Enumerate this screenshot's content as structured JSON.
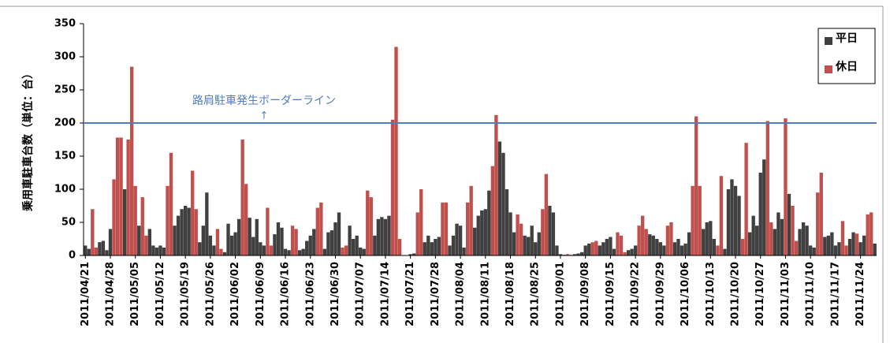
{
  "chart_data": {
    "type": "bar",
    "y_label": "乗用車駐車台数（単位：台）",
    "threshold": {
      "value": 200,
      "label": "路肩駐車発生ボーダーライン",
      "arrow": "↑",
      "color": "#4f7ec0"
    },
    "ylim": [
      0,
      350
    ],
    "yticks": [
      0,
      50,
      100,
      150,
      200,
      250,
      300,
      350
    ],
    "legend": "upper right",
    "categories": [
      "2011/04/21",
      null,
      null,
      null,
      null,
      null,
      null,
      "2011/04/28",
      null,
      null,
      null,
      null,
      null,
      null,
      "2011/05/05",
      null,
      null,
      null,
      null,
      null,
      null,
      "2011/05/12",
      null,
      null,
      null,
      null,
      null,
      null,
      "2011/05/19",
      null,
      null,
      null,
      null,
      null,
      null,
      "2011/05/26",
      null,
      null,
      null,
      null,
      null,
      null,
      "2011/06/02",
      null,
      null,
      null,
      null,
      null,
      null,
      "2011/06/09",
      null,
      null,
      null,
      null,
      null,
      null,
      "2011/06/16",
      null,
      null,
      null,
      null,
      null,
      null,
      "2011/06/23",
      null,
      null,
      null,
      null,
      null,
      null,
      "2011/06/30",
      null,
      null,
      null,
      null,
      null,
      null,
      "2011/07/07",
      null,
      null,
      null,
      null,
      null,
      null,
      "2011/07/14",
      null,
      null,
      null,
      null,
      null,
      null,
      "2011/07/21",
      null,
      null,
      null,
      null,
      null,
      null,
      "2011/07/28",
      null,
      null,
      null,
      null,
      null,
      null,
      "2011/08/04",
      null,
      null,
      null,
      null,
      null,
      null,
      "2011/08/11",
      null,
      null,
      null,
      null,
      null,
      null,
      "2011/08/18",
      null,
      null,
      null,
      null,
      null,
      null,
      "2011/08/25",
      null,
      null,
      null,
      null,
      null,
      null,
      "2011/09/01",
      null,
      null,
      null,
      null,
      null,
      null,
      "2011/09/08",
      null,
      null,
      null,
      null,
      null,
      null,
      "2011/09/15",
      null,
      null,
      null,
      null,
      null,
      null,
      "2011/09/22",
      null,
      null,
      null,
      null,
      null,
      null,
      "2011/09/29",
      null,
      null,
      null,
      null,
      null,
      null,
      "2011/10/06",
      null,
      null,
      null,
      null,
      null,
      null,
      "2011/10/13",
      null,
      null,
      null,
      null,
      null,
      null,
      "2011/10/20",
      null,
      null,
      null,
      null,
      null,
      null,
      "2011/10/27",
      null,
      null,
      null,
      null,
      null,
      null,
      "2011/11/03",
      null,
      null,
      null,
      null,
      null,
      null,
      "2011/11/10",
      null,
      null,
      null,
      null,
      null,
      null,
      "2011/11/17",
      null,
      null,
      null,
      null,
      null,
      null,
      "2011/11/24",
      null,
      null,
      null,
      null
    ],
    "series": [
      {
        "name": "平日",
        "color": "#404040",
        "values": [
          15,
          10,
          null,
          null,
          20,
          22,
          8,
          40,
          null,
          null,
          null,
          100,
          null,
          null,
          null,
          45,
          null,
          null,
          40,
          15,
          12,
          15,
          12,
          null,
          null,
          45,
          60,
          70,
          75,
          72,
          null,
          null,
          20,
          45,
          95,
          30,
          15,
          null,
          null,
          5,
          48,
          30,
          35,
          55,
          null,
          null,
          57,
          28,
          55,
          20,
          15,
          null,
          null,
          32,
          50,
          42,
          10,
          8,
          null,
          null,
          8,
          10,
          22,
          30,
          40,
          null,
          null,
          10,
          35,
          38,
          50,
          65,
          null,
          null,
          45,
          25,
          30,
          12,
          10,
          null,
          null,
          30,
          55,
          58,
          55,
          60,
          null,
          null,
          null,
          0,
          0,
          2,
          3,
          null,
          null,
          20,
          30,
          20,
          25,
          28,
          null,
          null,
          15,
          30,
          48,
          45,
          12,
          null,
          null,
          42,
          60,
          68,
          70,
          98,
          null,
          null,
          172,
          155,
          100,
          65,
          35,
          null,
          null,
          30,
          28,
          45,
          20,
          35,
          null,
          null,
          75,
          65,
          15,
          2,
          1,
          null,
          null,
          2,
          3,
          5,
          15,
          18,
          null,
          null,
          15,
          20,
          25,
          28,
          10,
          null,
          null,
          null,
          8,
          10,
          15,
          null,
          null,
          null,
          32,
          30,
          25,
          20,
          15,
          null,
          null,
          20,
          25,
          15,
          18,
          35,
          null,
          null,
          null,
          40,
          50,
          52,
          25,
          null,
          null,
          10,
          100,
          115,
          105,
          90,
          null,
          null,
          35,
          60,
          45,
          125,
          145,
          null,
          null,
          40,
          65,
          55,
          null,
          93,
          null,
          null,
          40,
          50,
          45,
          15,
          12,
          null,
          null,
          28,
          30,
          35,
          15,
          20,
          null,
          null,
          25,
          35,
          null,
          20,
          30,
          null,
          null,
          18
        ]
      },
      {
        "name": "休日",
        "color": "#c0504d",
        "values": [
          null,
          null,
          70,
          12,
          null,
          null,
          null,
          null,
          115,
          178,
          178,
          null,
          175,
          285,
          105,
          null,
          88,
          30,
          null,
          null,
          null,
          null,
          null,
          105,
          155,
          null,
          null,
          null,
          null,
          null,
          128,
          70,
          null,
          null,
          null,
          null,
          null,
          40,
          10,
          null,
          null,
          null,
          null,
          null,
          175,
          108,
          null,
          null,
          null,
          null,
          null,
          72,
          15,
          null,
          null,
          null,
          null,
          null,
          45,
          40,
          null,
          null,
          null,
          null,
          null,
          72,
          80,
          null,
          null,
          null,
          null,
          null,
          12,
          15,
          null,
          null,
          null,
          null,
          null,
          98,
          88,
          null,
          null,
          null,
          null,
          null,
          205,
          315,
          25,
          null,
          null,
          null,
          null,
          65,
          100,
          null,
          null,
          null,
          null,
          null,
          80,
          80,
          null,
          null,
          null,
          null,
          null,
          80,
          105,
          null,
          null,
          null,
          null,
          null,
          135,
          212,
          null,
          null,
          null,
          null,
          null,
          62,
          48,
          null,
          null,
          null,
          null,
          null,
          70,
          123,
          null,
          null,
          null,
          null,
          null,
          2,
          1,
          null,
          null,
          null,
          null,
          null,
          20,
          22,
          null,
          null,
          null,
          null,
          null,
          35,
          30,
          5,
          null,
          null,
          null,
          45,
          60,
          40,
          null,
          null,
          null,
          null,
          null,
          45,
          50,
          null,
          null,
          null,
          null,
          null,
          105,
          210,
          105,
          null,
          null,
          null,
          null,
          15,
          120,
          null,
          null,
          null,
          null,
          null,
          25,
          170,
          null,
          null,
          null,
          null,
          null,
          203,
          50,
          null,
          null,
          null,
          207,
          null,
          75,
          22,
          null,
          null,
          null,
          null,
          null,
          95,
          125,
          null,
          null,
          null,
          null,
          null,
          52,
          15,
          null,
          null,
          33,
          null,
          null,
          62,
          65,
          null
        ]
      }
    ]
  }
}
